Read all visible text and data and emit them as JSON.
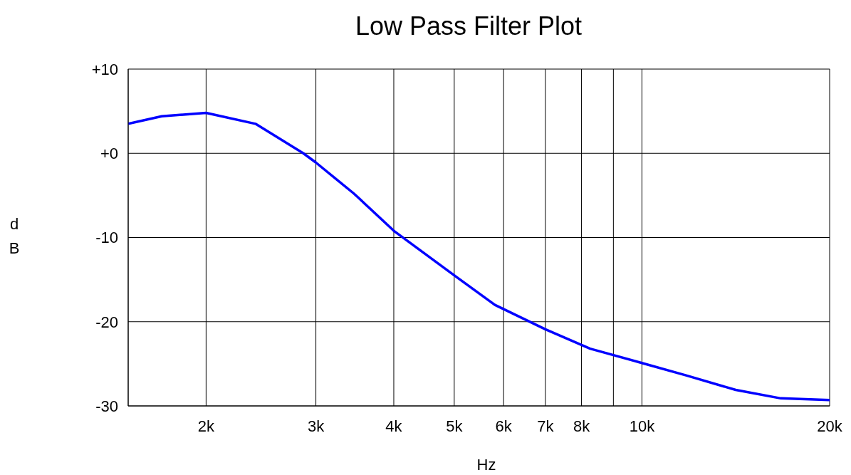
{
  "chart_data": {
    "type": "line",
    "title": "Low Pass Filter Plot",
    "xlabel": "Hz",
    "ylabel": "dB",
    "x": [
      1500,
      1698,
      2000,
      2400,
      2864,
      3000,
      3454,
      4000,
      5000,
      5810,
      7000,
      8260,
      10000,
      11800,
      14140,
      16700,
      20000
    ],
    "series": [
      {
        "color": "#0000ff",
        "values": [
          3.5,
          4.4,
          4.8,
          3.5,
          0,
          -1.1,
          -4.8,
          -9.2,
          -14.5,
          -18,
          -20.9,
          -23.2,
          -24.9,
          -26.4,
          -28.1,
          -29.1,
          -29.3
        ]
      }
    ],
    "log": "x",
    "xlim": [
      1500,
      20000
    ],
    "xticks": [
      {
        "value": 2000,
        "label": "2k"
      },
      {
        "value": 3000,
        "label": "3k"
      },
      {
        "value": 4000,
        "label": "4k"
      },
      {
        "value": 5000,
        "label": "5k"
      },
      {
        "value": 6000,
        "label": "6k"
      },
      {
        "value": 7000,
        "label": "7k"
      },
      {
        "value": 8000,
        "label": "8k"
      },
      {
        "value": 9000,
        "label": null
      },
      {
        "value": 10000,
        "label": "10k"
      },
      {
        "value": 20000,
        "label": "20k"
      }
    ],
    "ylim": [
      -30,
      10
    ],
    "yticks": [
      {
        "value": -30,
        "label": "-30"
      },
      {
        "value": -20,
        "label": "-20"
      },
      {
        "value": -10,
        "label": "-10"
      },
      {
        "value": 0,
        "label": "+0"
      },
      {
        "value": 10,
        "label": "+10"
      }
    ],
    "grid": true,
    "marker": "none",
    "line_style": "solid"
  }
}
